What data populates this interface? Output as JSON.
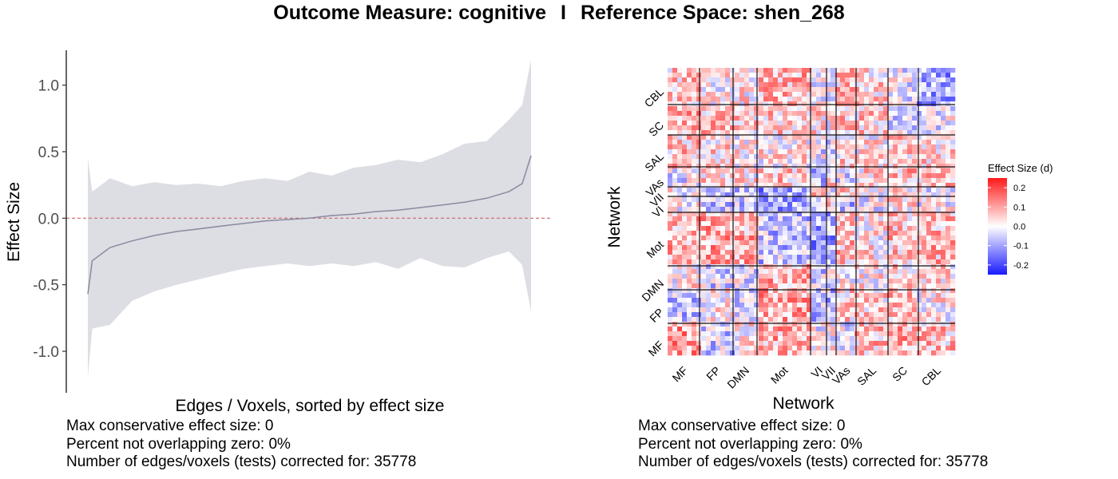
{
  "title": {
    "outcome": "Outcome Measure: cognitive",
    "separator": "I",
    "reference": "Reference Space: shen_268"
  },
  "left_stats": {
    "line1": "Max conservative effect size: 0",
    "line2": "Percent not overlapping zero: 0%",
    "line3": "Number of edges/voxels (tests) corrected for: 35778"
  },
  "right_stats": {
    "line1": "Max conservative effect size: 0",
    "line2": "Percent not overlapping zero: 0%",
    "line3": "Number of edges/voxels (tests) corrected for: 35778"
  },
  "colors": {
    "line": "#8a8aa0",
    "ribbon": "#dddde4",
    "zero_line": "#cc6666",
    "heat_low": "#1a1aff",
    "heat_mid": "#ffffff",
    "heat_high": "#ff1a1a"
  },
  "chart_data": [
    {
      "type": "line",
      "title": "",
      "xlabel": "Edges / Voxels, sorted by effect size",
      "ylabel": "Effect Size",
      "ylim": [
        -1.3,
        1.25
      ],
      "yticks": [
        "1.0",
        "0.5",
        "0.0",
        "-0.5",
        "-1.0"
      ],
      "ytick_values": [
        1.0,
        0.5,
        0.0,
        -0.5,
        -1.0
      ],
      "reference_line": 0,
      "series": [
        {
          "x": [
            0,
            0.01,
            0.05,
            0.1,
            0.15,
            0.2,
            0.25,
            0.3,
            0.35,
            0.4,
            0.45,
            0.5,
            0.55,
            0.6,
            0.65,
            0.7,
            0.75,
            0.8,
            0.85,
            0.9,
            0.95,
            0.98,
            1.0
          ],
          "values": [
            -0.57,
            -0.32,
            -0.22,
            -0.17,
            -0.13,
            -0.1,
            -0.08,
            -0.06,
            -0.04,
            -0.02,
            -0.01,
            0.0,
            0.02,
            0.03,
            0.05,
            0.06,
            0.08,
            0.1,
            0.12,
            0.15,
            0.2,
            0.26,
            0.47
          ],
          "ribbon_upper": [
            0.45,
            0.2,
            0.3,
            0.24,
            0.27,
            0.25,
            0.26,
            0.24,
            0.28,
            0.3,
            0.28,
            0.35,
            0.32,
            0.38,
            0.4,
            0.44,
            0.42,
            0.48,
            0.56,
            0.58,
            0.74,
            0.85,
            1.19
          ],
          "ribbon_lower": [
            -1.19,
            -0.83,
            -0.8,
            -0.62,
            -0.55,
            -0.5,
            -0.46,
            -0.42,
            -0.38,
            -0.36,
            -0.34,
            -0.36,
            -0.34,
            -0.36,
            -0.33,
            -0.38,
            -0.3,
            -0.36,
            -0.37,
            -0.3,
            -0.25,
            -0.35,
            -0.7
          ]
        }
      ],
      "grid": false
    },
    {
      "type": "heatmap",
      "title": "",
      "xlabel": "Network",
      "ylabel": "Network",
      "x_categories": [
        "MF",
        "FP",
        "DMN",
        "Mot",
        "VI",
        "VII",
        "VAs",
        "SAL",
        "SC",
        "CBL"
      ],
      "y_categories_bottom_to_top": [
        "MF",
        "FP",
        "DMN",
        "Mot",
        "VI",
        "VII",
        "VAs",
        "SAL",
        "SC",
        "CBL"
      ],
      "legend_title": "Effect Size (d)",
      "legend_ticks": [
        "0.2",
        "0.1",
        "0.0",
        "-0.1",
        "-0.2"
      ],
      "legend_tick_values": [
        0.2,
        0.1,
        0.0,
        -0.1,
        -0.2
      ],
      "color_range": [
        -0.25,
        0.25
      ],
      "legend_placement": "right"
    }
  ]
}
